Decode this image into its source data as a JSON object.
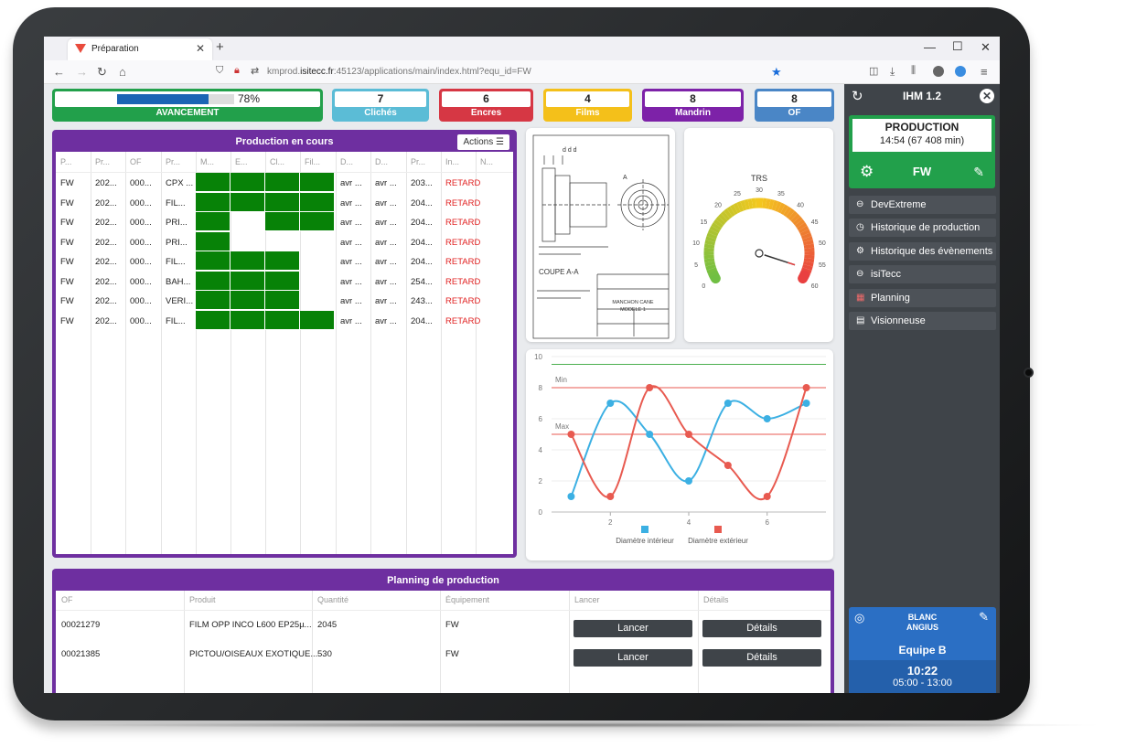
{
  "browser": {
    "tab_title": "Préparation",
    "url_prefix": "kmprod.",
    "url_domain": "isitecc.fr",
    "url_rest": ":45123/applications/main/index.html?equ_id=FW"
  },
  "kpis": {
    "progress": {
      "label": "AVANCEMENT",
      "value_text": "78%",
      "fraction": 0.78
    },
    "cliches": {
      "value": "7",
      "label": "Clichés"
    },
    "encres": {
      "value": "6",
      "label": "Encres"
    },
    "films": {
      "value": "4",
      "label": "Films"
    },
    "mandrin": {
      "value": "8",
      "label": "Mandrin"
    },
    "of": {
      "value": "8",
      "label": "OF"
    }
  },
  "production": {
    "title": "Production en cours",
    "actions_label": "Actions",
    "headers": [
      "P...",
      "Pr...",
      "OF",
      "Pr...",
      "M...",
      "E...",
      "Cl...",
      "Fil...",
      "D...",
      "D...",
      "Pr...",
      "In...",
      "N..."
    ],
    "rows": [
      {
        "c0": "FW",
        "c1": "202...",
        "c2": "000...",
        "c3": "CPX ...",
        "d1": "avr ...",
        "d2": "avr ...",
        "c10": "203...",
        "status": "RETARD",
        "g": [
          1,
          1,
          1,
          1
        ]
      },
      {
        "c0": "FW",
        "c1": "202...",
        "c2": "000...",
        "c3": "FIL...",
        "d1": "avr ...",
        "d2": "avr ...",
        "c10": "204...",
        "status": "RETARD",
        "g": [
          1,
          1,
          1,
          1
        ]
      },
      {
        "c0": "FW",
        "c1": "202...",
        "c2": "000...",
        "c3": "PRI...",
        "d1": "avr ...",
        "d2": "avr ...",
        "c10": "204...",
        "status": "RETARD",
        "g": [
          1,
          0,
          1,
          1
        ]
      },
      {
        "c0": "FW",
        "c1": "202...",
        "c2": "000...",
        "c3": "PRI...",
        "d1": "avr ...",
        "d2": "avr ...",
        "c10": "204...",
        "status": "RETARD",
        "g": [
          1,
          0,
          0,
          0
        ]
      },
      {
        "c0": "FW",
        "c1": "202...",
        "c2": "000...",
        "c3": "FIL...",
        "d1": "avr ...",
        "d2": "avr ...",
        "c10": "204...",
        "status": "RETARD",
        "g": [
          1,
          1,
          1,
          0
        ]
      },
      {
        "c0": "FW",
        "c1": "202...",
        "c2": "000...",
        "c3": "BAH...",
        "d1": "avr ...",
        "d2": "avr ...",
        "c10": "254...",
        "status": "RETARD",
        "g": [
          1,
          1,
          1,
          0
        ]
      },
      {
        "c0": "FW",
        "c1": "202...",
        "c2": "000...",
        "c3": "VERI...",
        "d1": "avr ...",
        "d2": "avr ...",
        "c10": "243...",
        "status": "RETARD",
        "g": [
          1,
          1,
          1,
          0
        ]
      },
      {
        "c0": "FW",
        "c1": "202...",
        "c2": "000...",
        "c3": "FIL...",
        "d1": "avr ...",
        "d2": "avr ...",
        "c10": "204...",
        "status": "RETARD",
        "g": [
          1,
          1,
          1,
          1
        ]
      }
    ]
  },
  "drawing": {
    "section_label": "COUPE A-A",
    "title_line1": "MANCHON CANE",
    "title_line2": "MODELE 1",
    "label_a": "A"
  },
  "gauge": {
    "title": "TRS",
    "min": 0,
    "max": 60,
    "value": 57,
    "ticks": [
      "0",
      "5",
      "10",
      "15",
      "20",
      "25",
      "30",
      "35",
      "40",
      "45",
      "50",
      "55",
      "60"
    ]
  },
  "chart_data": {
    "type": "line",
    "x": [
      1,
      2,
      3,
      4,
      5,
      6,
      7
    ],
    "series": [
      {
        "name": "Diamètre intérieur",
        "color": "#3cb0e3",
        "values": [
          1,
          7,
          5,
          2,
          7,
          6,
          7
        ]
      },
      {
        "name": "Diamètre extérieur",
        "color": "#e85a50",
        "values": [
          5,
          1,
          8,
          5,
          3,
          1,
          8
        ]
      }
    ],
    "ylim": [
      0,
      10
    ],
    "yticks": [
      "0",
      "2",
      "4",
      "6",
      "8",
      "10"
    ],
    "xticks": [
      "2",
      "4",
      "6"
    ],
    "lines": [
      {
        "label": "Min",
        "y": 8,
        "color": "#e85a50"
      },
      {
        "label": "Max",
        "y": 5,
        "color": "#e85a50"
      },
      {
        "label": "",
        "y": 9.5,
        "color": "#4caf50"
      }
    ],
    "legend": "bottom"
  },
  "planning": {
    "title": "Planning de production",
    "headers": [
      "OF",
      "Produit",
      "Quantité",
      "Équipement",
      "Lancer",
      "Détails"
    ],
    "rows": [
      {
        "of": "00021279",
        "produit": "FILM OPP INCO L600 EP25µ...",
        "qte": "2045",
        "equip": "FW",
        "lancer": "Lancer",
        "details": "Détails"
      },
      {
        "of": "00021385",
        "produit": "PICTOU/OISEAUX EXOTIQUE...",
        "qte": "530",
        "equip": "FW",
        "lancer": "Lancer",
        "details": "Détails"
      }
    ]
  },
  "sidebar": {
    "title": "IHM 1.2",
    "status_title": "PRODUCTION",
    "status_time": "14:54 (67 408 min)",
    "equipment": "FW",
    "menu": [
      "DevExtreme",
      "Historique de production",
      "Historique des évènements",
      "isiTecc",
      "Planning",
      "Visionneuse"
    ],
    "user_line1": "BLANC",
    "user_line2": "ANGIUS",
    "team": "Equipe B",
    "clock": "10:22",
    "shift": "05:00 - 13:00"
  }
}
